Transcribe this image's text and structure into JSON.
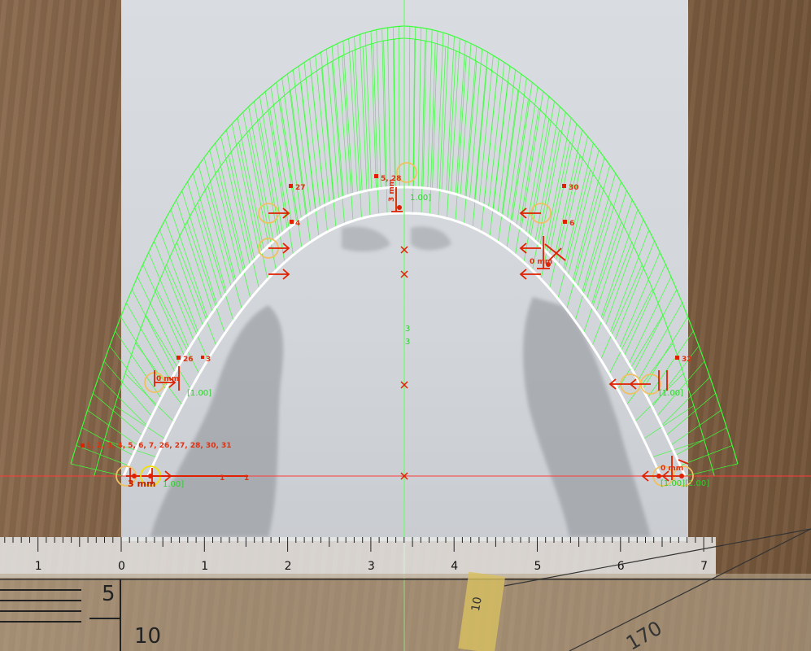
{
  "colors": {
    "fan": "#39ff39",
    "wire": "#ffffff",
    "marker": "#e02000",
    "axis_x": "#ff3b3b",
    "axis_y": "#6cff6c",
    "circle": "#f0c060",
    "circle_yellow": "#f2e000"
  },
  "point_labels": [
    {
      "id": "p27",
      "text": "27"
    },
    {
      "id": "p528",
      "text": "5, 28"
    },
    {
      "id": "p30",
      "text": "30"
    },
    {
      "id": "p4",
      "text": "4"
    },
    {
      "id": "p6",
      "text": "6"
    },
    {
      "id": "p26",
      "text": "26"
    },
    {
      "id": "p3",
      "text": "3"
    },
    {
      "id": "p32",
      "text": "32"
    },
    {
      "id": "plist",
      "text": "1, 2, 3, 4, 5, 6, 7, 26, 27, 28, 30, 31"
    }
  ],
  "dim_labels": [
    {
      "id": "d1",
      "text": "1"
    },
    {
      "id": "d2",
      "text": "1"
    },
    {
      "id": "d3",
      "text": "3"
    },
    {
      "id": "d4",
      "text": "3"
    }
  ],
  "value_labels": [
    {
      "id": "v1",
      "text": "3 mm"
    },
    {
      "id": "v2",
      "text": "1.00]"
    },
    {
      "id": "v3",
      "text": "[1.00]"
    },
    {
      "id": "v4",
      "text": "0 mm"
    },
    {
      "id": "v5",
      "text": "3 mm"
    },
    {
      "id": "v6",
      "text": "1.00]"
    },
    {
      "id": "v7",
      "text": "0 mm"
    },
    {
      "id": "v8",
      "text": "[1.00]"
    },
    {
      "id": "v9",
      "text": "0 mm"
    },
    {
      "id": "v10",
      "text": "[1.00][1.00]"
    }
  ],
  "ruler": {
    "top_numbers": [
      "1",
      "0",
      "1",
      "2",
      "3",
      "4",
      "5",
      "6",
      "7"
    ],
    "bottom_numbers": [
      "5",
      "10",
      "10",
      "170"
    ]
  }
}
